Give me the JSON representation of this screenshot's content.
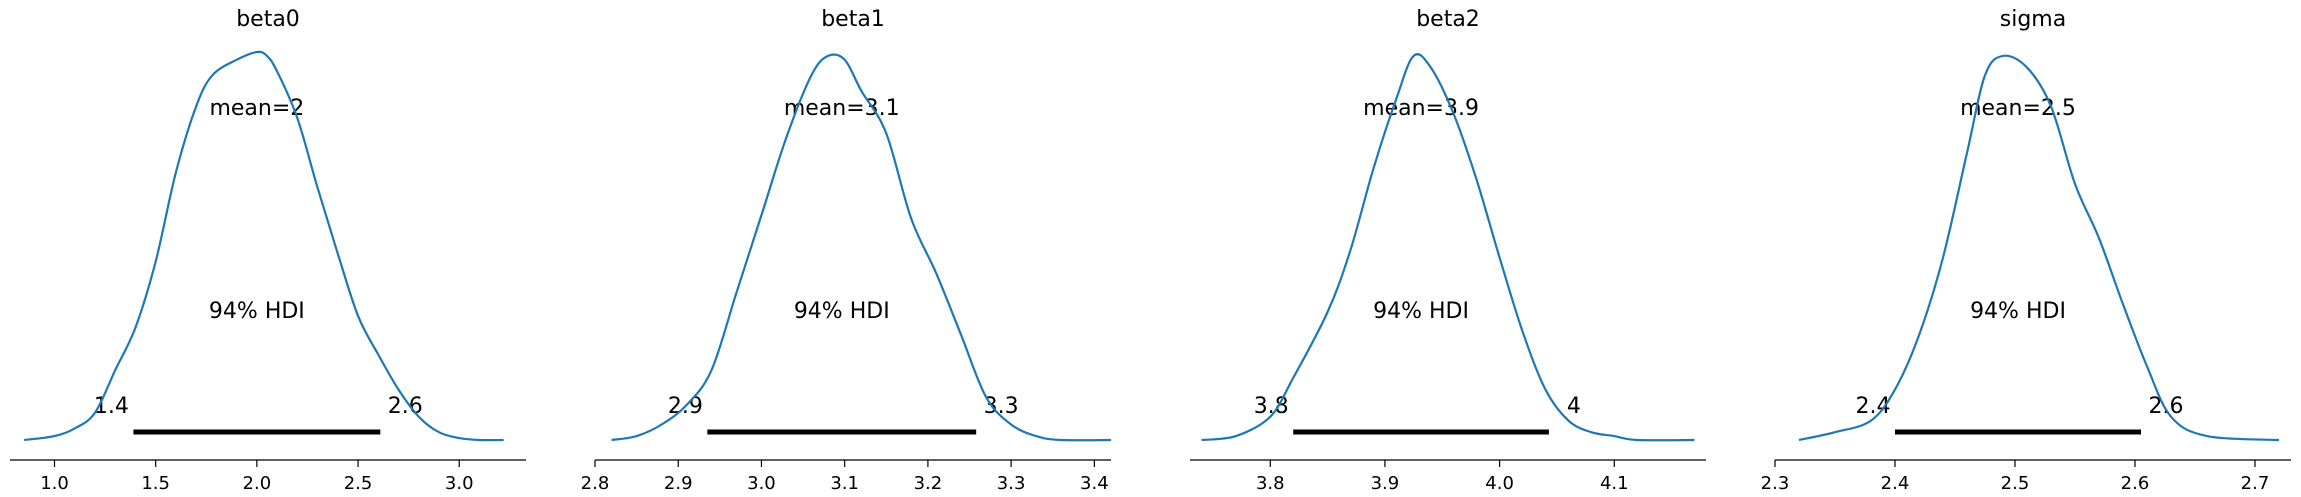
{
  "colors": {
    "density": "#1f77b4",
    "hdi_bar": "#000000",
    "axis": "#000000"
  },
  "hdi_label": "94% HDI",
  "chart_data": [
    {
      "type": "area",
      "title": "beta0",
      "mean_label": "mean=2",
      "hdi": [
        1.39,
        2.61
      ],
      "hdi_low_label": "1.4",
      "hdi_high_label": "2.6",
      "xlim": [
        0.78,
        3.33
      ],
      "xticks": [
        1.0,
        1.5,
        2.0,
        2.5,
        3.0
      ],
      "xtick_labels": [
        "1.0",
        "1.5",
        "2.0",
        "2.5",
        "3.0"
      ],
      "density": {
        "x": [
          0.85,
          1.0,
          1.1,
          1.2,
          1.3,
          1.4,
          1.5,
          1.6,
          1.7,
          1.78,
          1.9,
          2.0,
          2.05,
          2.1,
          2.2,
          2.3,
          2.4,
          2.5,
          2.6,
          2.7,
          2.8,
          2.9,
          3.0,
          3.1,
          3.22
        ],
        "y": [
          0.0,
          0.01,
          0.03,
          0.07,
          0.18,
          0.29,
          0.46,
          0.69,
          0.86,
          0.94,
          0.98,
          1.0,
          0.99,
          0.95,
          0.83,
          0.65,
          0.48,
          0.32,
          0.22,
          0.13,
          0.06,
          0.02,
          0.005,
          0.0,
          0.0
        ]
      }
    },
    {
      "type": "area",
      "title": "beta1",
      "mean_label": "mean=3.1",
      "hdi": [
        2.935,
        3.258
      ],
      "hdi_low_label": "2.9",
      "hdi_high_label": "3.3",
      "xlim": [
        2.8,
        3.42
      ],
      "xticks": [
        2.8,
        2.9,
        3.0,
        3.1,
        3.2,
        3.3,
        3.4
      ],
      "xtick_labels": [
        "2.8",
        "2.9",
        "3.0",
        "3.1",
        "3.2",
        "3.3",
        "3.4"
      ],
      "density": {
        "x": [
          2.82,
          2.85,
          2.88,
          2.91,
          2.94,
          2.97,
          3.0,
          3.03,
          3.06,
          3.08,
          3.1,
          3.12,
          3.15,
          3.18,
          3.21,
          3.24,
          3.27,
          3.3,
          3.33,
          3.36,
          3.42
        ],
        "y": [
          0.0,
          0.01,
          0.04,
          0.09,
          0.18,
          0.38,
          0.58,
          0.78,
          0.94,
          0.99,
          0.98,
          0.9,
          0.79,
          0.57,
          0.43,
          0.27,
          0.11,
          0.04,
          0.01,
          0.0,
          0.0
        ]
      }
    },
    {
      "type": "area",
      "title": "beta2",
      "mean_label": "mean=3.9",
      "hdi": [
        3.82,
        4.043
      ],
      "hdi_low_label": "3.8",
      "hdi_high_label": "4",
      "xlim": [
        3.73,
        4.18
      ],
      "xticks": [
        3.8,
        3.9,
        4.0,
        4.1
      ],
      "xtick_labels": [
        "3.8",
        "3.9",
        "4.0",
        "4.1"
      ],
      "density": {
        "x": [
          3.74,
          3.77,
          3.8,
          3.82,
          3.85,
          3.87,
          3.89,
          3.91,
          3.925,
          3.94,
          3.96,
          3.98,
          4.0,
          4.02,
          4.04,
          4.06,
          4.08,
          4.1,
          4.12,
          4.17
        ],
        "y": [
          0.0,
          0.01,
          0.06,
          0.16,
          0.33,
          0.49,
          0.7,
          0.88,
          0.99,
          0.96,
          0.84,
          0.67,
          0.47,
          0.28,
          0.13,
          0.05,
          0.02,
          0.01,
          0.0,
          0.0
        ]
      }
    },
    {
      "type": "area",
      "title": "sigma",
      "mean_label": "mean=2.5",
      "hdi": [
        2.4,
        2.605
      ],
      "hdi_low_label": "2.4",
      "hdi_high_label": "2.6",
      "xlim": [
        2.3,
        2.73
      ],
      "xticks": [
        2.3,
        2.4,
        2.5,
        2.6,
        2.7
      ],
      "xtick_labels": [
        "2.3",
        "2.4",
        "2.5",
        "2.6",
        "2.7"
      ],
      "density": {
        "x": [
          2.32,
          2.35,
          2.38,
          2.4,
          2.42,
          2.44,
          2.46,
          2.475,
          2.49,
          2.51,
          2.53,
          2.55,
          2.57,
          2.59,
          2.61,
          2.63,
          2.66,
          2.72
        ],
        "y": [
          0.0,
          0.02,
          0.05,
          0.13,
          0.27,
          0.47,
          0.74,
          0.94,
          0.99,
          0.96,
          0.86,
          0.66,
          0.52,
          0.35,
          0.19,
          0.06,
          0.01,
          0.0
        ]
      }
    }
  ]
}
